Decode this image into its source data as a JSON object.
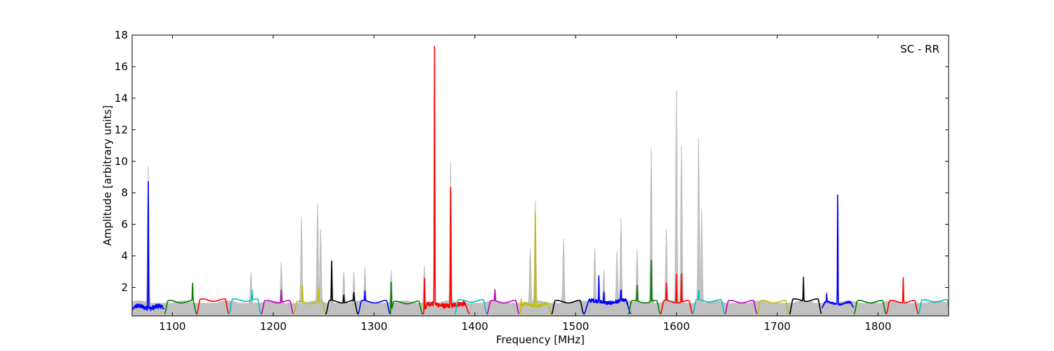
{
  "chart_data": {
    "type": "line",
    "annotation": "SC - RR",
    "xlabel": "Frequency [MHz]",
    "ylabel": "Amplitude [arbitrary units]",
    "xlim": [
      1060,
      1870
    ],
    "ylim": [
      0.2,
      18
    ],
    "x_ticks": [
      1100,
      1200,
      1300,
      1400,
      1500,
      1600,
      1700,
      1800
    ],
    "y_ticks": [
      2,
      4,
      6,
      8,
      10,
      12,
      14,
      16,
      18
    ],
    "grid": false,
    "background_color": "#c0c0c0",
    "background_peaks": [
      {
        "x": 1076,
        "y": 9.7
      },
      {
        "x": 1178,
        "y": 3.0
      },
      {
        "x": 1208,
        "y": 3.6
      },
      {
        "x": 1228,
        "y": 6.5
      },
      {
        "x": 1244,
        "y": 7.3
      },
      {
        "x": 1247,
        "y": 5.7
      },
      {
        "x": 1258,
        "y": 3.7
      },
      {
        "x": 1270,
        "y": 3.0
      },
      {
        "x": 1280,
        "y": 3.0
      },
      {
        "x": 1291,
        "y": 3.3
      },
      {
        "x": 1317,
        "y": 3.1
      },
      {
        "x": 1350,
        "y": 3.4
      },
      {
        "x": 1376,
        "y": 10.0
      },
      {
        "x": 1420,
        "y": 1.9
      },
      {
        "x": 1455,
        "y": 4.5
      },
      {
        "x": 1460,
        "y": 7.5
      },
      {
        "x": 1488,
        "y": 5.1
      },
      {
        "x": 1519,
        "y": 4.5
      },
      {
        "x": 1528,
        "y": 3.1
      },
      {
        "x": 1541,
        "y": 4.3
      },
      {
        "x": 1545,
        "y": 6.4
      },
      {
        "x": 1561,
        "y": 4.4
      },
      {
        "x": 1575,
        "y": 10.9
      },
      {
        "x": 1590,
        "y": 5.7
      },
      {
        "x": 1600,
        "y": 14.5
      },
      {
        "x": 1605,
        "y": 11.0
      },
      {
        "x": 1622,
        "y": 11.5
      },
      {
        "x": 1625,
        "y": 7.0
      }
    ],
    "subbands": [
      {
        "color": "#0000ff",
        "start": 1060,
        "end": 1092,
        "base": 0.75,
        "floor": 0.6,
        "noise": 0.15,
        "spikes": [
          {
            "x": 1076,
            "y": 9.1
          }
        ]
      },
      {
        "color": "#008000",
        "start": 1092,
        "end": 1124,
        "base": 1.1,
        "floor": 0.3,
        "spikes": [
          {
            "x": 1120,
            "y": 2.1
          }
        ]
      },
      {
        "color": "#ff0000",
        "start": 1124,
        "end": 1156,
        "base": 1.2,
        "floor": 0.3,
        "spikes": []
      },
      {
        "color": "#00bfbf",
        "start": 1156,
        "end": 1188,
        "base": 1.2,
        "floor": 0.3,
        "spikes": [
          {
            "x": 1179,
            "y": 1.6
          }
        ]
      },
      {
        "color": "#bf00bf",
        "start": 1188,
        "end": 1220,
        "base": 1.1,
        "floor": 0.3,
        "spikes": [
          {
            "x": 1208,
            "y": 1.8
          }
        ]
      },
      {
        "color": "#bfbf00",
        "start": 1220,
        "end": 1252,
        "base": 1.05,
        "floor": 0.3,
        "spikes": [
          {
            "x": 1229,
            "y": 2.0
          },
          {
            "x": 1245,
            "y": 1.9
          }
        ]
      },
      {
        "color": "#000000",
        "start": 1252,
        "end": 1284,
        "base": 1.1,
        "floor": 0.3,
        "spikes": [
          {
            "x": 1258,
            "y": 3.5
          },
          {
            "x": 1270,
            "y": 1.5
          },
          {
            "x": 1280,
            "y": 1.5
          }
        ]
      },
      {
        "color": "#0000ff",
        "start": 1284,
        "end": 1316,
        "base": 1.1,
        "floor": 0.3,
        "spikes": [
          {
            "x": 1291,
            "y": 1.6
          }
        ]
      },
      {
        "color": "#008000",
        "start": 1316,
        "end": 1348,
        "base": 1.05,
        "floor": 0.3,
        "spikes": [
          {
            "x": 1317,
            "y": 2.9
          }
        ]
      },
      {
        "color": "#ff0000",
        "start": 1348,
        "end": 1395,
        "base": 0.9,
        "floor": 0.3,
        "noise": 0.15,
        "spikes": [
          {
            "x": 1350,
            "y": 3.1
          },
          {
            "x": 1360,
            "y": 17.4
          },
          {
            "x": 1376,
            "y": 8.4
          }
        ]
      },
      {
        "color": "#00bfbf",
        "start": 1380,
        "end": 1412,
        "base": 1.15,
        "floor": 0.3,
        "spikes": []
      },
      {
        "color": "#bf00bf",
        "start": 1412,
        "end": 1444,
        "base": 1.1,
        "floor": 0.3,
        "spikes": [
          {
            "x": 1420,
            "y": 1.7
          }
        ]
      },
      {
        "color": "#bfbf00",
        "start": 1444,
        "end": 1476,
        "base": 0.9,
        "floor": 0.3,
        "noise": 0.08,
        "spikes": [
          {
            "x": 1446,
            "y": 1.6
          },
          {
            "x": 1460,
            "y": 6.9
          }
        ]
      },
      {
        "color": "#000000",
        "start": 1476,
        "end": 1508,
        "base": 1.1,
        "floor": 0.3,
        "spikes": []
      },
      {
        "color": "#0000ff",
        "start": 1508,
        "end": 1555,
        "base": 1.1,
        "floor": 0.3,
        "noise": 0.12,
        "spikes": [
          {
            "x": 1523,
            "y": 2.5
          },
          {
            "x": 1528,
            "y": 1.7
          },
          {
            "x": 1545,
            "y": 1.8
          }
        ]
      },
      {
        "color": "#008000",
        "start": 1552,
        "end": 1584,
        "base": 1.1,
        "floor": 0.3,
        "spikes": [
          {
            "x": 1561,
            "y": 2.0
          },
          {
            "x": 1575,
            "y": 3.6
          }
        ]
      },
      {
        "color": "#ff0000",
        "start": 1584,
        "end": 1616,
        "base": 1.1,
        "floor": 0.3,
        "spikes": [
          {
            "x": 1590,
            "y": 2.1
          },
          {
            "x": 1600,
            "y": 2.8
          },
          {
            "x": 1605,
            "y": 2.8
          }
        ]
      },
      {
        "color": "#00bfbf",
        "start": 1616,
        "end": 1648,
        "base": 1.15,
        "floor": 0.3,
        "spikes": [
          {
            "x": 1622,
            "y": 1.6
          }
        ]
      },
      {
        "color": "#bf00bf",
        "start": 1648,
        "end": 1680,
        "base": 1.1,
        "floor": 0.3,
        "spikes": []
      },
      {
        "color": "#bfbf00",
        "start": 1680,
        "end": 1712,
        "base": 1.1,
        "floor": 0.3,
        "spikes": []
      },
      {
        "color": "#000000",
        "start": 1712,
        "end": 1744,
        "base": 1.2,
        "floor": 0.3,
        "spikes": [
          {
            "x": 1726,
            "y": 2.5
          }
        ]
      },
      {
        "color": "#0000ff",
        "start": 1744,
        "end": 1776,
        "base": 1.0,
        "floor": 0.7,
        "noise": 0.06,
        "spikes": [
          {
            "x": 1749,
            "y": 1.5
          },
          {
            "x": 1760,
            "y": 8.0
          }
        ]
      },
      {
        "color": "#008000",
        "start": 1776,
        "end": 1808,
        "base": 1.1,
        "floor": 0.3,
        "spikes": []
      },
      {
        "color": "#ff0000",
        "start": 1808,
        "end": 1840,
        "base": 1.1,
        "floor": 0.3,
        "spikes": [
          {
            "x": 1825,
            "y": 2.6
          }
        ]
      },
      {
        "color": "#00bfbf",
        "start": 1840,
        "end": 1872,
        "base": 1.15,
        "floor": 0.3,
        "spikes": []
      }
    ]
  }
}
